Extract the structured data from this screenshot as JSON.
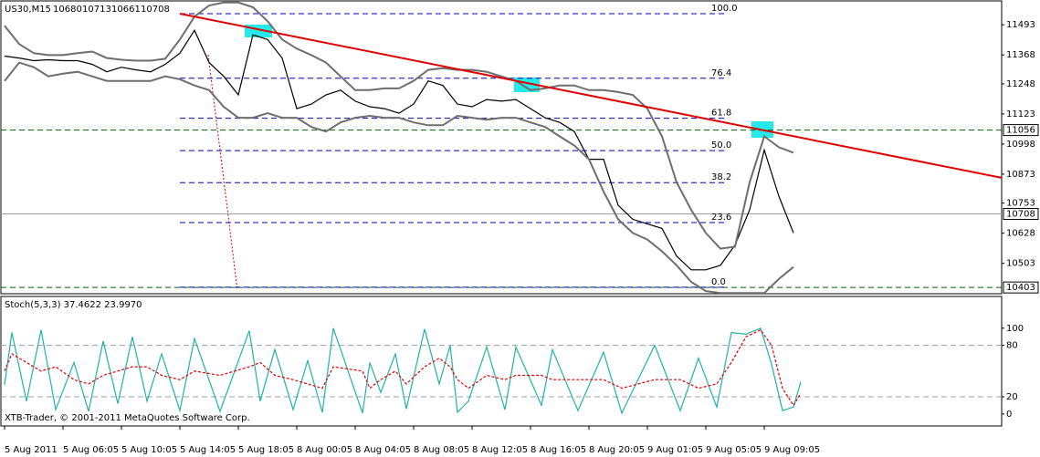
{
  "chart_data": [
    {
      "type": "line",
      "title": "US30,M15",
      "ohlc": [
        10680,
        10713,
        10661,
        10708
      ],
      "xlim": [
        -1,
        273
      ],
      "ylim": [
        10377,
        11592
      ],
      "yticks": [
        11493,
        11368,
        11248,
        11123,
        10998,
        10873,
        10753,
        10628,
        10503
      ],
      "x": [
        0,
        4,
        8,
        12,
        16,
        20,
        24,
        28,
        32,
        36,
        40,
        44,
        48,
        52,
        56,
        60,
        64,
        68,
        72,
        76,
        80,
        84,
        88,
        92,
        96,
        100,
        104,
        108,
        112,
        116,
        120,
        124,
        128,
        132,
        136,
        140,
        144,
        148,
        152,
        156,
        160,
        164,
        168,
        172,
        176,
        180,
        184,
        188,
        192,
        196,
        200,
        204,
        208,
        212,
        216
      ],
      "series": [
        {
          "name": "Close",
          "color": "#000000",
          "values": [
            11363,
            11355,
            11344,
            11348,
            11344,
            11344,
            11329,
            11298,
            11317,
            11306,
            11298,
            11329,
            11375,
            11470,
            11336,
            11279,
            11202,
            11451,
            11432,
            11355,
            11145,
            11164,
            11202,
            11222,
            11176,
            11153,
            11145,
            11126,
            11164,
            11260,
            11241,
            11164,
            11153,
            11183,
            11176,
            11183,
            11145,
            11107,
            11088,
            11050,
            10935,
            10935,
            10744,
            10686,
            10667,
            10648,
            10533,
            10476,
            10476,
            10495,
            10579,
            10725,
            10973,
            10782,
            10629
          ]
        },
        {
          "name": "Upper band",
          "color": "#6e6e6e",
          "values": [
            11489,
            11413,
            11375,
            11367,
            11367,
            11375,
            11382,
            11355,
            11348,
            11344,
            11344,
            11352,
            11432,
            11527,
            11573,
            11585,
            11585,
            11566,
            11508,
            11432,
            11394,
            11367,
            11336,
            11279,
            11222,
            11222,
            11229,
            11229,
            11260,
            11306,
            11313,
            11306,
            11306,
            11298,
            11279,
            11260,
            11222,
            11229,
            11241,
            11241,
            11222,
            11222,
            11214,
            11202,
            11145,
            11030,
            10839,
            10725,
            10629,
            10564,
            10572,
            10839,
            11030,
            10985,
            10962
          ]
        },
        {
          "name": "Lower band",
          "color": "#6e6e6e",
          "values": [
            11260,
            11336,
            11317,
            11279,
            11290,
            11298,
            11279,
            11260,
            11260,
            11260,
            11260,
            11279,
            11267,
            11241,
            11222,
            11153,
            11107,
            11107,
            11126,
            11107,
            11107,
            11069,
            11050,
            11088,
            11107,
            11115,
            11107,
            11107,
            11088,
            11076,
            11076,
            11115,
            11107,
            11099,
            11107,
            11107,
            11088,
            11069,
            11030,
            10992,
            10935,
            10801,
            10686,
            10629,
            10602,
            10553,
            10495,
            10426,
            10388,
            10380,
            10380,
            10380,
            10380,
            10438,
            10488
          ]
        }
      ],
      "trendline": {
        "x": [
          48,
          273
        ],
        "values": [
          11539,
          10858
        ],
        "color": "#e00000"
      },
      "fib": {
        "x": [
          48,
          197
        ],
        "color": "#0000c0",
        "levels": [
          {
            "label": "100.0",
            "price": 11539
          },
          {
            "label": "76.4",
            "price": 11271
          },
          {
            "label": "61.8",
            "price": 11105
          },
          {
            "label": "50.0",
            "price": 10971
          },
          {
            "label": "38.2",
            "price": 10838
          },
          {
            "label": "23.6",
            "price": 10672
          },
          {
            "label": "0.0",
            "price": 10404
          }
        ]
      },
      "levels": [
        {
          "value": 11056,
          "color": "#006400"
        },
        {
          "value": 10708,
          "color": "#a0a0a0"
        },
        {
          "value": 10403,
          "color": "#006400"
        }
      ]
    },
    {
      "type": "line",
      "title": "Stoch(5,3,3) 37.4622 23.9970",
      "xlim": [
        -1,
        273
      ],
      "ylim": [
        -14,
        137
      ],
      "yticks": [
        100,
        80,
        20,
        0
      ],
      "levels": [
        {
          "value": 80,
          "color": "#a0a0a0"
        },
        {
          "value": 20,
          "color": "#a0a0a0"
        }
      ],
      "x": [
        0,
        2,
        6,
        10,
        14,
        19,
        23,
        27,
        31,
        35,
        39,
        43,
        48,
        52,
        59,
        67,
        70,
        74,
        79,
        83,
        87,
        90,
        98,
        100,
        103,
        107,
        110,
        115,
        119,
        122,
        124,
        127,
        132,
        137,
        140,
        147,
        150,
        157,
        164,
        169,
        178,
        185,
        190,
        195,
        199,
        203,
        207,
        210,
        213,
        216,
        218
      ],
      "series": [
        {
          "name": "Main",
          "color": "#20b2aa",
          "values": [
            34,
            95,
            15,
            98,
            5,
            60,
            3,
            85,
            12,
            90,
            15,
            70,
            4,
            88,
            3,
            97,
            15,
            75,
            5,
            62,
            2,
            100,
            1,
            60,
            25,
            70,
            6,
            99,
            35,
            80,
            2,
            15,
            78,
            5,
            78,
            10,
            75,
            4,
            72,
            1,
            80,
            4,
            65,
            8,
            95,
            93,
            100,
            58,
            4,
            8,
            37.4622
          ]
        },
        {
          "name": "Signal",
          "color": "#e00000",
          "values": [
            50,
            70,
            60,
            50,
            55,
            40,
            35,
            45,
            50,
            55,
            55,
            45,
            40,
            50,
            45,
            55,
            60,
            45,
            40,
            35,
            30,
            55,
            50,
            30,
            40,
            50,
            35,
            55,
            65,
            55,
            40,
            30,
            45,
            40,
            45,
            45,
            40,
            40,
            40,
            30,
            40,
            40,
            30,
            35,
            60,
            90,
            98,
            80,
            30,
            10,
            23.997
          ]
        }
      ],
      "xticks": [
        {
          "value": 0,
          "label": "5 Aug 2011"
        },
        {
          "value": 16,
          "label": "5 Aug 06:05"
        },
        {
          "value": 32,
          "label": "5 Aug 10:05"
        },
        {
          "value": 48,
          "label": "5 Aug 14:05"
        },
        {
          "value": 64,
          "label": "5 Aug 18:05"
        },
        {
          "value": 80,
          "label": "8 Aug 00:05"
        },
        {
          "value": 96,
          "label": "8 Aug 04:05"
        },
        {
          "value": 112,
          "label": "8 Aug 08:05"
        },
        {
          "value": 128,
          "label": "8 Aug 12:05"
        },
        {
          "value": 144,
          "label": "8 Aug 16:05"
        },
        {
          "value": 160,
          "label": "8 Aug 20:05"
        },
        {
          "value": 176,
          "label": "9 Aug 01:05"
        },
        {
          "value": 192,
          "label": "9 Aug 05:05"
        },
        {
          "value": 208,
          "label": "9 Aug 09:05"
        }
      ],
      "footer": "XTB-Trader, © 2001-2011 MetaQuotes Software Corp."
    }
  ]
}
